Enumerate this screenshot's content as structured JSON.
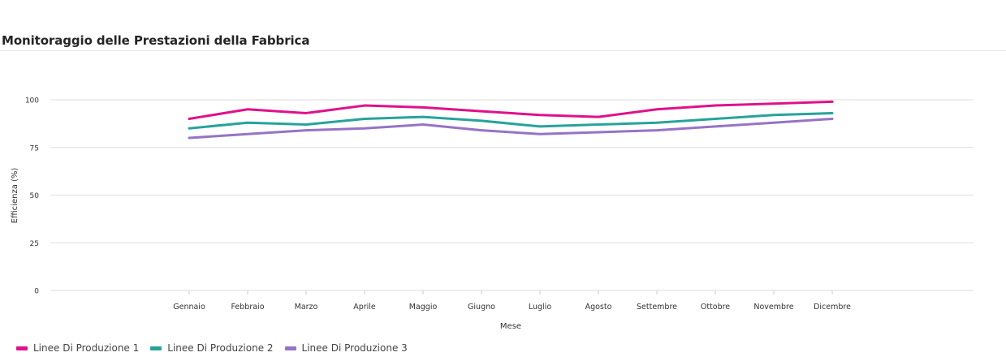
{
  "card": {
    "title": "Monitoraggio delle Prestazioni della Fabbrica"
  },
  "chart_data": {
    "type": "line",
    "title": "Monitoraggio delle Prestazioni della Fabbrica",
    "xlabel": "Mese",
    "ylabel": "Efficienza (%)",
    "categories": [
      "Gennaio",
      "Febbraio",
      "Marzo",
      "Aprile",
      "Maggio",
      "Giugno",
      "Luglio",
      "Agosto",
      "Settembre",
      "Ottobre",
      "Novembre",
      "Dicembre"
    ],
    "ylim": [
      0,
      100
    ],
    "yticks": [
      0,
      25,
      50,
      75,
      100
    ],
    "grid": true,
    "legend_position": "bottom-left",
    "series": [
      {
        "name": "Linee Di Produzione 1",
        "color": "#e0118a",
        "values": [
          90,
          95,
          93,
          97,
          96,
          94,
          92,
          91,
          95,
          97,
          98,
          99
        ]
      },
      {
        "name": "Linee Di Produzione 2",
        "color": "#26a39b",
        "values": [
          85,
          88,
          87,
          90,
          91,
          89,
          86,
          87,
          88,
          90,
          92,
          93
        ]
      },
      {
        "name": "Linee Di Produzione 3",
        "color": "#9673c7",
        "values": [
          80,
          82,
          84,
          85,
          87,
          84,
          82,
          83,
          84,
          86,
          88,
          90
        ]
      }
    ]
  }
}
